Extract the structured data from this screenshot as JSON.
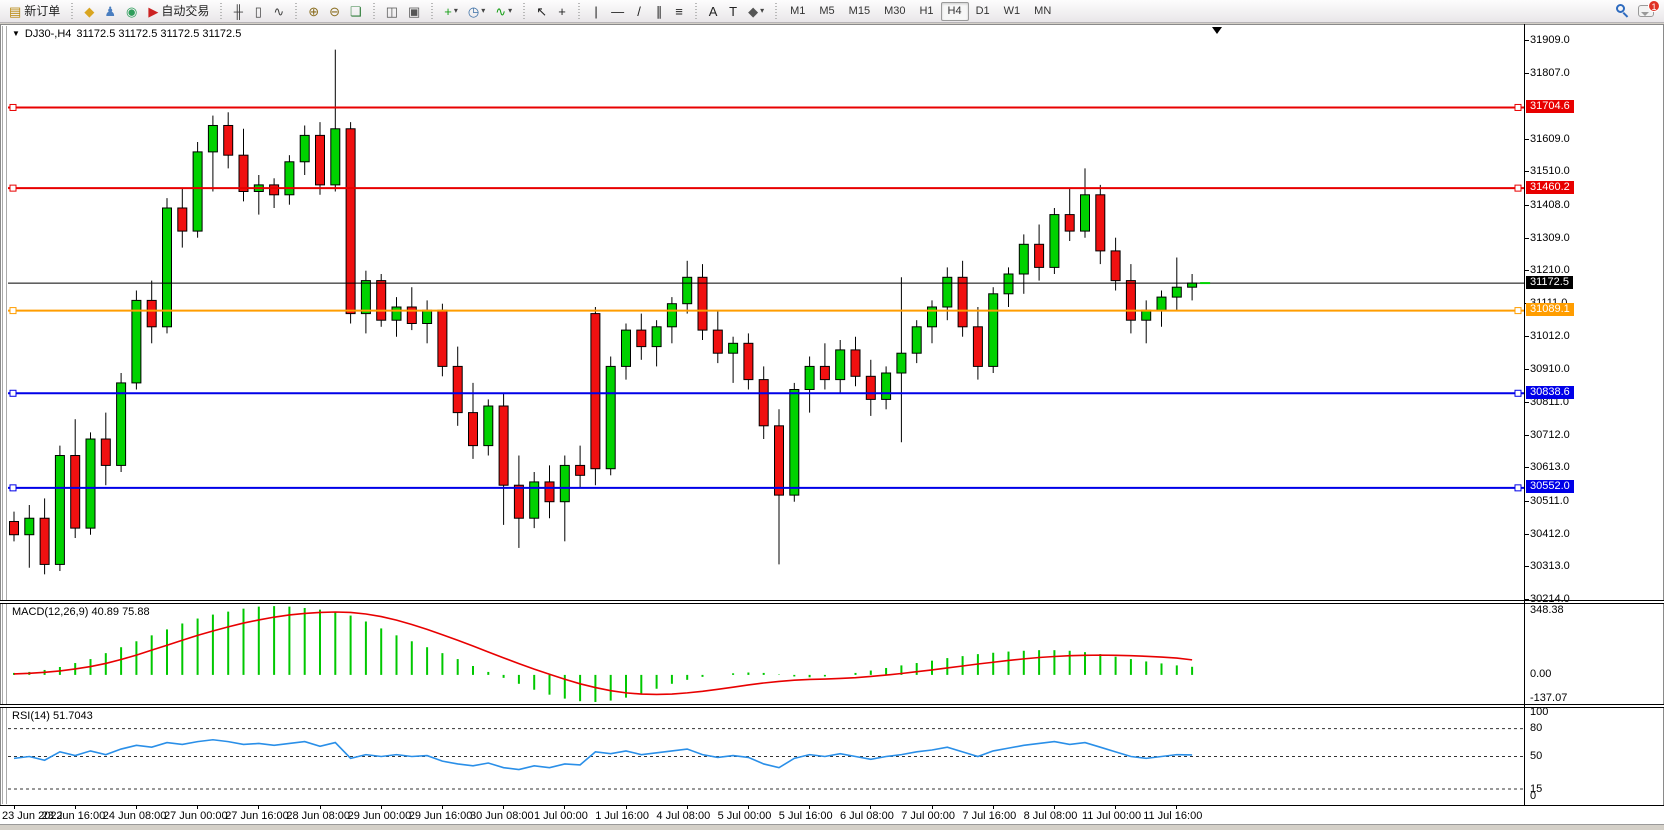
{
  "toolbar": {
    "new_order": {
      "label": "新订单",
      "glyph": "▤",
      "color": "#b8860b"
    },
    "icon_groups": [
      [
        {
          "name": "history-center-icon",
          "glyph": "◆",
          "color": "#d9a520"
        },
        {
          "name": "profile-icon",
          "glyph": "♟",
          "color": "#4a7ec0"
        },
        {
          "name": "signals-icon",
          "glyph": "◉",
          "color": "#2e9e5b"
        }
      ],
      [
        {
          "name": "bar-chart-icon",
          "glyph": "╫",
          "color": "#444444"
        },
        {
          "name": "candlestick-chart-icon",
          "glyph": "▯",
          "color": "#444444"
        },
        {
          "name": "line-chart-icon",
          "glyph": "∿",
          "color": "#444444"
        }
      ],
      [
        {
          "name": "zoom-in-icon",
          "glyph": "⊕",
          "color": "#8a6d1f"
        },
        {
          "name": "zoom-out-icon",
          "glyph": "⊖",
          "color": "#8a6d1f"
        },
        {
          "name": "tile-windows-icon",
          "glyph": "❏",
          "color": "#2f7d3a"
        }
      ],
      [
        {
          "name": "arrange-windows-icon",
          "glyph": "◫",
          "color": "#555555"
        },
        {
          "name": "cascade-windows-icon",
          "glyph": "▣",
          "color": "#555555"
        }
      ],
      [
        {
          "name": "new-chart-icon",
          "glyph": "+",
          "color": "#169e16",
          "caret": true
        },
        {
          "name": "period-clock-icon",
          "glyph": "◷",
          "color": "#3a6ea5",
          "caret": true
        },
        {
          "name": "indicators-icon",
          "glyph": "∿",
          "color": "#169e16",
          "caret": true
        }
      ],
      [
        {
          "name": "cursor-icon",
          "glyph": "↖",
          "color": "#222222"
        },
        {
          "name": "crosshair-icon",
          "glyph": "+",
          "color": "#222222"
        }
      ],
      [
        {
          "name": "vertical-line-icon",
          "glyph": "|",
          "color": "#222222"
        },
        {
          "name": "horizontal-line-icon",
          "glyph": "—",
          "color": "#222222"
        },
        {
          "name": "trendline-icon",
          "glyph": "/",
          "color": "#222222"
        },
        {
          "name": "equidistant-channel-icon",
          "glyph": "∥",
          "color": "#222222"
        },
        {
          "name": "fibonacci-icon",
          "glyph": "≡",
          "color": "#222222"
        }
      ],
      [
        {
          "name": "text-icon",
          "glyph": "A",
          "color": "#222222"
        },
        {
          "name": "text-label-icon",
          "glyph": "T",
          "color": "#222222"
        },
        {
          "name": "arrows-icon",
          "glyph": "◆",
          "color": "#555555",
          "caret": true
        }
      ]
    ],
    "auto_trading": {
      "label": "自动交易",
      "glyph": "▶",
      "color": "#cc2222"
    },
    "timeframes": [
      "M1",
      "M5",
      "M15",
      "M30",
      "H1",
      "H4",
      "D1",
      "W1",
      "MN"
    ],
    "active_timeframe": "H4",
    "notification_badge": "1"
  },
  "chart_header": {
    "symbol": "DJ30-,H4",
    "quotes": "31172.5 31172.5 31172.5 31172.5"
  },
  "price_axis": {
    "ticks": [
      31909.0,
      31807.0,
      31609.0,
      31510.0,
      31408.0,
      31309.0,
      31210.0,
      31111.0,
      31012.0,
      30910.0,
      30811.0,
      30712.0,
      30613.0,
      30511.0,
      30412.0,
      30313.0,
      30214.0
    ]
  },
  "chart_data": {
    "type": "candlestick",
    "symbol": "DJ30-",
    "period": "H4",
    "price_top": 31957.5,
    "price_bottom": 30212.2,
    "bull_color": "#00d200",
    "bear_color": "#f01010",
    "hlines": [
      {
        "label": "31704.6",
        "price": 31704.6,
        "color": "#e80000",
        "handles": true
      },
      {
        "label": "31460.2",
        "price": 31460.2,
        "color": "#e80000",
        "handles": true
      },
      {
        "label": "31172.5",
        "price": 31172.5,
        "color": "#000000",
        "handles": false,
        "is_current_price": true
      },
      {
        "label": "31089.1",
        "price": 31089.1,
        "color": "#ff9d00",
        "handles": true
      },
      {
        "label": "30838.6",
        "price": 30838.6,
        "color": "#0000e8",
        "handles": true
      },
      {
        "label": "30552.0",
        "price": 30552.0,
        "color": "#0000e8",
        "handles": true
      }
    ],
    "current_price": 31172.5,
    "bars_ohlc": [
      [
        30450,
        30480,
        30390,
        30410
      ],
      [
        30410,
        30500,
        30310,
        30460
      ],
      [
        30460,
        30520,
        30290,
        30320
      ],
      [
        30320,
        30680,
        30300,
        30650
      ],
      [
        30650,
        30760,
        30400,
        30430
      ],
      [
        30430,
        30720,
        30410,
        30700
      ],
      [
        30700,
        30780,
        30560,
        30620
      ],
      [
        30620,
        30900,
        30600,
        30870
      ],
      [
        30870,
        31150,
        30850,
        31120
      ],
      [
        31120,
        31180,
        30990,
        31040
      ],
      [
        31040,
        31430,
        31020,
        31400
      ],
      [
        31400,
        31460,
        31280,
        31330
      ],
      [
        31330,
        31600,
        31310,
        31570
      ],
      [
        31570,
        31680,
        31450,
        31650
      ],
      [
        31650,
        31690,
        31520,
        31560
      ],
      [
        31560,
        31640,
        31420,
        31450
      ],
      [
        31450,
        31500,
        31380,
        31470
      ],
      [
        31470,
        31490,
        31400,
        31440
      ],
      [
        31440,
        31560,
        31410,
        31540
      ],
      [
        31540,
        31650,
        31500,
        31620
      ],
      [
        31620,
        31660,
        31440,
        31470
      ],
      [
        31470,
        31880,
        31450,
        31640
      ],
      [
        31640,
        31660,
        31050,
        31080
      ],
      [
        31080,
        31210,
        31020,
        31180
      ],
      [
        31180,
        31200,
        31040,
        31060
      ],
      [
        31060,
        31130,
        31010,
        31100
      ],
      [
        31100,
        31160,
        31030,
        31050
      ],
      [
        31050,
        31120,
        30990,
        31090
      ],
      [
        31090,
        31110,
        30890,
        30920
      ],
      [
        30920,
        30980,
        30740,
        30780
      ],
      [
        30780,
        30870,
        30640,
        30680
      ],
      [
        30680,
        30820,
        30650,
        30800
      ],
      [
        30800,
        30840,
        30440,
        30560
      ],
      [
        30560,
        30650,
        30370,
        30460
      ],
      [
        30460,
        30600,
        30430,
        30570
      ],
      [
        30570,
        30620,
        30460,
        30510
      ],
      [
        30510,
        30650,
        30390,
        30620
      ],
      [
        30620,
        30680,
        30550,
        30590
      ],
      [
        31080,
        31100,
        30560,
        30610
      ],
      [
        30610,
        30950,
        30590,
        30920
      ],
      [
        30920,
        31050,
        30880,
        31030
      ],
      [
        31030,
        31080,
        30940,
        30980
      ],
      [
        30980,
        31060,
        30920,
        31040
      ],
      [
        31040,
        31130,
        30990,
        31110
      ],
      [
        31110,
        31240,
        31080,
        31190
      ],
      [
        31190,
        31230,
        31000,
        31030
      ],
      [
        31030,
        31090,
        30930,
        30960
      ],
      [
        30960,
        31010,
        30870,
        30990
      ],
      [
        30990,
        31020,
        30850,
        30880
      ],
      [
        30880,
        30920,
        30700,
        30740
      ],
      [
        30740,
        30790,
        30320,
        30530
      ],
      [
        30530,
        30870,
        30510,
        30850
      ],
      [
        30850,
        30950,
        30780,
        30920
      ],
      [
        30920,
        30990,
        30850,
        30880
      ],
      [
        30880,
        31000,
        30840,
        30970
      ],
      [
        30970,
        31010,
        30860,
        30890
      ],
      [
        30890,
        30940,
        30770,
        30820
      ],
      [
        30820,
        30920,
        30790,
        30900
      ],
      [
        30900,
        31190,
        30690,
        30960
      ],
      [
        30960,
        31060,
        30930,
        31040
      ],
      [
        31040,
        31120,
        30990,
        31100
      ],
      [
        31100,
        31220,
        31060,
        31190
      ],
      [
        31190,
        31240,
        31010,
        31040
      ],
      [
        31040,
        31100,
        30880,
        30920
      ],
      [
        30920,
        31160,
        30900,
        31140
      ],
      [
        31140,
        31220,
        31100,
        31200
      ],
      [
        31200,
        31320,
        31140,
        31290
      ],
      [
        31290,
        31350,
        31180,
        31220
      ],
      [
        31220,
        31400,
        31200,
        31380
      ],
      [
        31380,
        31460,
        31300,
        31330
      ],
      [
        31330,
        31520,
        31310,
        31440
      ],
      [
        31440,
        31470,
        31230,
        31270
      ],
      [
        31270,
        31310,
        31150,
        31180
      ],
      [
        31180,
        31230,
        31020,
        31060
      ],
      [
        31060,
        31120,
        30990,
        31090
      ],
      [
        31090,
        31150,
        31040,
        31130
      ],
      [
        31130,
        31250,
        31090,
        31160
      ],
      [
        31160,
        31200,
        31120,
        31172.5
      ]
    ],
    "time_labels": [
      "23 Jun 2022",
      "23 Jun 16:00",
      "24 Jun 08:00",
      "27 Jun 00:00",
      "27 Jun 16:00",
      "28 Jun 08:00",
      "29 Jun 00:00",
      "29 Jun 16:00",
      "30 Jun 08:00",
      "1 Jul 00:00",
      "1 Jul 16:00",
      "4 Jul 08:00",
      "5 Jul 00:00",
      "5 Jul 16:00",
      "6 Jul 08:00",
      "7 Jul 00:00",
      "7 Jul 16:00",
      "8 Jul 08:00",
      "11 Jul 00:00",
      "11 Jul 16:00"
    ],
    "bars_per_time_label": 4
  },
  "macd": {
    "name_label": "MACD(12,26,9)",
    "values_label": "40.89 75.88",
    "axis_max": 348.38,
    "axis_zero": "0.00",
    "axis_min": -137.07,
    "axis_labels": [
      "348.38",
      "0.00",
      "-137.07"
    ],
    "histogram_color": "#00c800",
    "signal_color": "#e80000",
    "histogram": [
      10,
      15,
      25,
      40,
      60,
      80,
      110,
      140,
      170,
      200,
      230,
      260,
      285,
      305,
      320,
      335,
      345,
      348,
      345,
      338,
      330,
      318,
      300,
      270,
      235,
      200,
      170,
      140,
      110,
      80,
      45,
      15,
      -15,
      -45,
      -75,
      -100,
      -120,
      -133,
      -137,
      -130,
      -115,
      -95,
      -70,
      -45,
      -25,
      -10,
      0,
      8,
      12,
      10,
      2,
      -8,
      -12,
      -8,
      0,
      10,
      22,
      35,
      48,
      60,
      72,
      85,
      95,
      105,
      112,
      118,
      122,
      125,
      125,
      122,
      115,
      105,
      92,
      80,
      68,
      58,
      48,
      41
    ],
    "signal": [
      5,
      8,
      13,
      20,
      30,
      42,
      58,
      78,
      100,
      125,
      150,
      175,
      200,
      222,
      243,
      262,
      278,
      292,
      303,
      311,
      316,
      318,
      316,
      308,
      295,
      277,
      255,
      230,
      203,
      175,
      146,
      116,
      86,
      57,
      29,
      3,
      -22,
      -45,
      -64,
      -80,
      -91,
      -97,
      -99,
      -97,
      -91,
      -83,
      -73,
      -62,
      -51,
      -41,
      -33,
      -27,
      -23,
      -21,
      -18,
      -14,
      -8,
      -1,
      7,
      16,
      25,
      35,
      45,
      55,
      64,
      73,
      81,
      88,
      93,
      97,
      99,
      100,
      99,
      97,
      94,
      90,
      85,
      76
    ]
  },
  "rsi": {
    "name_label": "RSI(14)",
    "values_label": "51.7043",
    "line_color": "#2a8fe8",
    "axis_labels": [
      "100",
      "80",
      "50",
      "15",
      "0"
    ],
    "levels": [
      80,
      50,
      15
    ],
    "values": [
      48,
      50,
      46,
      55,
      51,
      56,
      52,
      58,
      62,
      60,
      65,
      63,
      66,
      68,
      66,
      63,
      64,
      62,
      64,
      66,
      61,
      65,
      48,
      52,
      50,
      52,
      50,
      51,
      45,
      42,
      40,
      43,
      38,
      36,
      40,
      38,
      42,
      41,
      55,
      53,
      56,
      52,
      54,
      56,
      58,
      52,
      49,
      51,
      49,
      42,
      38,
      48,
      52,
      50,
      53,
      50,
      47,
      50,
      52,
      55,
      57,
      60,
      55,
      50,
      56,
      59,
      62,
      64,
      66,
      63,
      65,
      60,
      55,
      50,
      48,
      50,
      52,
      51.7
    ]
  }
}
